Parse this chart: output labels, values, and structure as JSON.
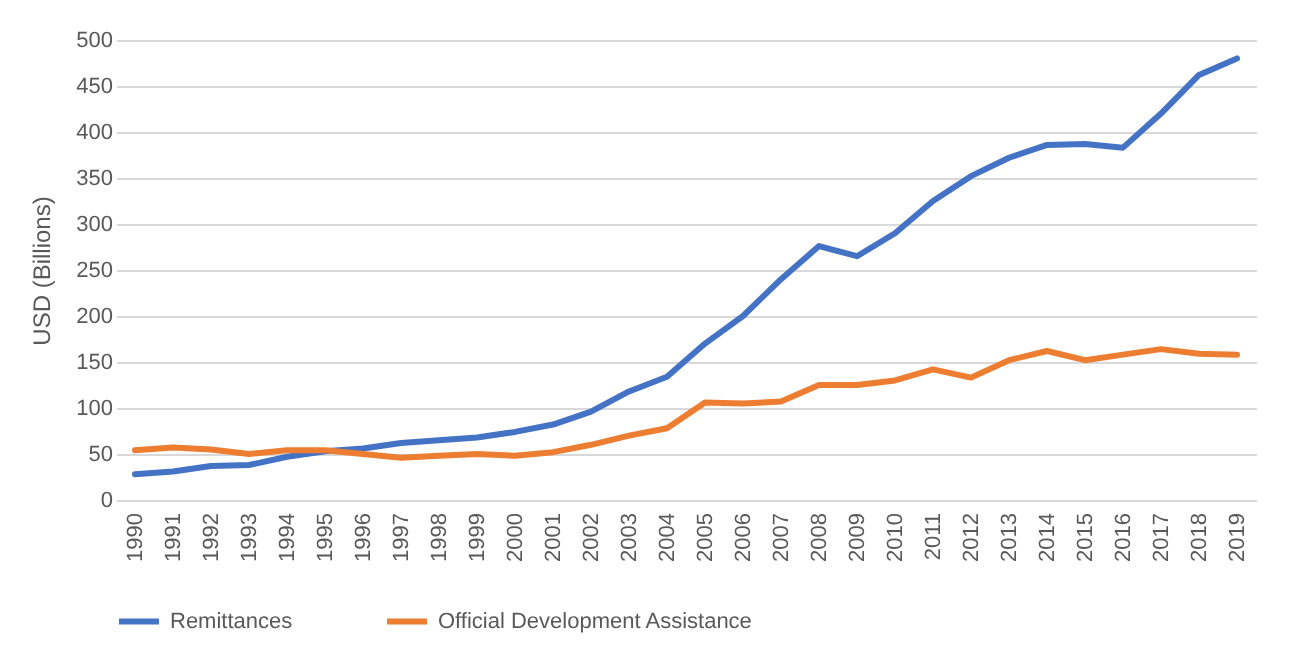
{
  "chart_data": {
    "type": "line",
    "ylabel": "USD  (Billions)",
    "categories": [
      "1990",
      "1991",
      "1992",
      "1993",
      "1994",
      "1995",
      "1996",
      "1997",
      "1998",
      "1999",
      "2000",
      "2001",
      "2002",
      "2003",
      "2004",
      "2005",
      "2006",
      "2007",
      "2008",
      "2009",
      "2010",
      "2011",
      "2012",
      "2013",
      "2014",
      "2015",
      "2016",
      "2017",
      "2018",
      "2019"
    ],
    "series": [
      {
        "name": "Remittances",
        "color": "#4472c4",
        "values": [
          28,
          31,
          37,
          38,
          47,
          53,
          56,
          62,
          65,
          68,
          74,
          82,
          96,
          118,
          134,
          170,
          200,
          240,
          276,
          265,
          290,
          325,
          352,
          372,
          386,
          387,
          383,
          420,
          462,
          480
        ]
      },
      {
        "name": "Official Development Assistance",
        "color": "#ed7d31",
        "values": [
          54,
          57,
          55,
          50,
          54,
          54,
          50,
          46,
          48,
          50,
          48,
          52,
          60,
          70,
          78,
          106,
          105,
          107,
          125,
          125,
          130,
          142,
          133,
          152,
          162,
          152,
          158,
          164,
          159,
          158
        ]
      }
    ],
    "ylim": [
      0,
      500
    ],
    "yticks": [
      0,
      50,
      100,
      150,
      200,
      250,
      300,
      350,
      400,
      450,
      500
    ],
    "grid": "y",
    "legend": "bottom",
    "marker": "none",
    "line_style": "solid"
  }
}
